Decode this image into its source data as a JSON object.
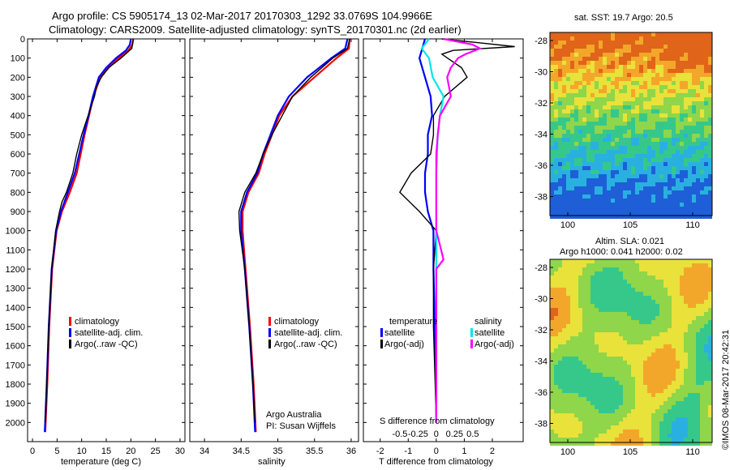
{
  "header": {
    "line1": "Argo profile: CS 5905174_13 02-Mar-2017 20170303_1292 33.0769S 104.9966E",
    "line2": "Climatology: CARS2009. Satellite-adjusted climatology: synTS_20170301.nc (2d earlier)"
  },
  "colors": {
    "climatology": "#ff0000",
    "satellite": "#0000ff",
    "argo": "#000000",
    "sat_salinity": "#00e5ee",
    "argo_salinity": "#ff00ff"
  },
  "chart_data": [
    {
      "type": "line",
      "name": "temperature-profile",
      "xlabel": "temperature (deg C)",
      "ylabel": "",
      "xlim": [
        -1,
        31
      ],
      "ylim": [
        2100,
        0
      ],
      "x_ticks": [
        0,
        5,
        10,
        15,
        20,
        25,
        30
      ],
      "y_ticks": [
        0,
        100,
        200,
        300,
        400,
        500,
        600,
        700,
        800,
        900,
        1000,
        1100,
        1200,
        1300,
        1400,
        1500,
        1600,
        1700,
        1800,
        1900,
        2000
      ],
      "legend": [
        "climatology",
        "satellite-adj. clim.",
        "Argo(..raw -QC)"
      ],
      "legend_position": "lower-right",
      "series": [
        {
          "name": "climatology",
          "depth": [
            0,
            30,
            60,
            100,
            150,
            200,
            300,
            400,
            500,
            600,
            700,
            800,
            900,
            1000,
            1200,
            1500,
            1800,
            2050
          ],
          "values": [
            20.5,
            20.3,
            19.5,
            17.5,
            15.5,
            13.8,
            12.4,
            11.5,
            10.6,
            9.8,
            9.0,
            7.6,
            6.0,
            4.9,
            4.0,
            3.4,
            3.0,
            2.6
          ]
        },
        {
          "name": "satellite-adj. clim.",
          "depth": [
            0,
            30,
            60,
            100,
            150,
            200,
            300,
            400,
            500,
            600,
            700,
            800,
            900,
            1000,
            1200,
            1500,
            1800,
            2050
          ],
          "values": [
            20.0,
            19.8,
            19.0,
            17.0,
            15.0,
            13.5,
            12.3,
            11.4,
            10.4,
            9.5,
            8.6,
            7.2,
            5.8,
            4.8,
            3.9,
            3.3,
            2.9,
            2.5
          ]
        },
        {
          "name": "Argo(..raw -QC)",
          "depth": [
            0,
            20,
            50,
            100,
            150,
            200,
            250,
            300,
            400,
            500,
            600,
            700,
            800,
            850,
            900,
            1000,
            1200,
            1500,
            1800,
            2000
          ],
          "values": [
            20.5,
            20.4,
            20.2,
            18.0,
            15.5,
            14.0,
            13.0,
            12.6,
            11.3,
            10.0,
            9.0,
            8.2,
            6.9,
            6.0,
            5.5,
            4.7,
            3.9,
            3.3,
            2.9,
            2.6
          ]
        }
      ]
    },
    {
      "type": "line",
      "name": "salinity-profile",
      "xlabel": "salinity",
      "xlim": [
        33.8,
        36.1
      ],
      "ylim": [
        2100,
        0
      ],
      "x_ticks": [
        34,
        34.5,
        35,
        35.5,
        36
      ],
      "x_tick_labels": [
        "34",
        "34.5",
        "35",
        "35.5",
        "36"
      ],
      "legend": [
        "climatology",
        "satellite-adj. clim.",
        "Argo(..raw -QC)"
      ],
      "legend_position": "lower-right",
      "annotations": [
        "Argo Australia",
        "PI: Susan Wijffels"
      ],
      "series": [
        {
          "name": "climatology",
          "depth": [
            0,
            50,
            100,
            200,
            300,
            400,
            500,
            600,
            700,
            800,
            900,
            1000,
            1200,
            1500,
            1800,
            2050
          ],
          "values": [
            35.98,
            35.97,
            35.8,
            35.5,
            35.2,
            35.02,
            34.92,
            34.82,
            34.74,
            34.6,
            34.52,
            34.52,
            34.56,
            34.62,
            34.67,
            34.7
          ]
        },
        {
          "name": "satellite-adj. clim.",
          "depth": [
            0,
            50,
            100,
            200,
            300,
            400,
            500,
            600,
            700,
            800,
            900,
            1000,
            1200,
            1500,
            1800,
            2050
          ],
          "values": [
            35.95,
            35.92,
            35.73,
            35.4,
            35.15,
            35.0,
            34.9,
            34.8,
            34.72,
            34.58,
            34.5,
            34.5,
            34.55,
            34.61,
            34.66,
            34.69
          ]
        },
        {
          "name": "Argo(..raw -QC)",
          "depth": [
            0,
            50,
            100,
            200,
            300,
            400,
            500,
            600,
            700,
            800,
            900,
            1000,
            1200,
            1500,
            1800,
            2000
          ],
          "values": [
            35.98,
            35.95,
            35.75,
            35.45,
            35.2,
            35.06,
            34.92,
            34.8,
            34.7,
            34.55,
            34.47,
            34.48,
            34.55,
            34.61,
            34.66,
            34.69
          ]
        }
      ]
    },
    {
      "type": "line",
      "name": "difference-profile",
      "xlabel": "T difference from climatology",
      "xlabel_top": "S difference from climatology",
      "xlim": [
        -2.6,
        3.1
      ],
      "ylim": [
        2100,
        0
      ],
      "x_ticks": [
        -2,
        -1,
        0,
        1,
        2
      ],
      "s_ticks": [
        -0.5,
        -0.25,
        0,
        0.25,
        0.5
      ],
      "s_tick_labels": [
        "-0.5",
        "-0.25",
        "0",
        "0.25",
        "0.5"
      ],
      "legend_groups": [
        {
          "title": "temperature",
          "items": [
            "satellite",
            "Argo(-adj)"
          ]
        },
        {
          "title": "salinity",
          "items": [
            "satellite",
            "Argo(-adj)"
          ]
        }
      ],
      "series": [
        {
          "name": "temperature satellite",
          "depth": [
            0,
            50,
            100,
            200,
            300,
            400,
            500,
            600,
            700,
            800,
            900,
            1000,
            1200,
            1500,
            2000
          ],
          "values": [
            -0.4,
            -0.5,
            -0.6,
            -0.4,
            -0.2,
            -0.15,
            -0.3,
            -0.3,
            -0.4,
            -0.4,
            -0.3,
            -0.1,
            -0.1,
            -0.05,
            0.0
          ]
        },
        {
          "name": "temperature Argo(-adj)",
          "depth": [
            0,
            20,
            40,
            60,
            80,
            100,
            150,
            200,
            300,
            400,
            500,
            600,
            700,
            800,
            900,
            1000,
            1200,
            1500,
            2000
          ],
          "values": [
            0.2,
            1.5,
            2.8,
            0.6,
            0.2,
            0.4,
            0.9,
            1.1,
            0.3,
            -0.1,
            -0.1,
            -0.2,
            -0.9,
            -1.3,
            -0.6,
            0.0,
            -0.1,
            -0.1,
            0.0
          ]
        },
        {
          "name": "salinity satellite",
          "depth": [
            0,
            50,
            100,
            200,
            300,
            400,
            500,
            700,
            900,
            1100,
            1500,
            2000
          ],
          "values": [
            -0.1,
            -0.2,
            -0.1,
            -0.05,
            0.1,
            0.05,
            0.02,
            0.0,
            0.0,
            0.0,
            0.0,
            0.0
          ]
        },
        {
          "name": "salinity Argo(-adj)",
          "depth": [
            0,
            30,
            50,
            80,
            100,
            150,
            200,
            300,
            400,
            500,
            600,
            800,
            1000,
            1150,
            1200,
            1500,
            2000
          ],
          "values": [
            0.1,
            0.5,
            0.6,
            0.4,
            0.3,
            0.2,
            0.15,
            0.2,
            0.05,
            0.02,
            0.0,
            0.0,
            0.0,
            0.1,
            0.0,
            0.0,
            0.0
          ]
        }
      ]
    },
    {
      "type": "heatmap",
      "name": "sst-map",
      "title": "sat. SST: 19.7  Argo: 20.5",
      "x_ticks": [
        "100",
        "105",
        "110"
      ],
      "y_ticks": [
        "-28",
        "-30",
        "-32",
        "-34",
        "-36",
        "-38"
      ]
    },
    {
      "type": "heatmap",
      "name": "sla-map",
      "title_line1": "Altim. SLA: 0.021",
      "title_line2": "Argo h1000: 0.041 h2000: 0.02",
      "x_ticks": [
        "100",
        "105",
        "110"
      ],
      "y_ticks": [
        "-28",
        "-30",
        "-32",
        "-34",
        "-36",
        "-38"
      ]
    }
  ],
  "footer": {
    "side_text": "©IMOS 08-Mar-2017 20:42:31"
  }
}
